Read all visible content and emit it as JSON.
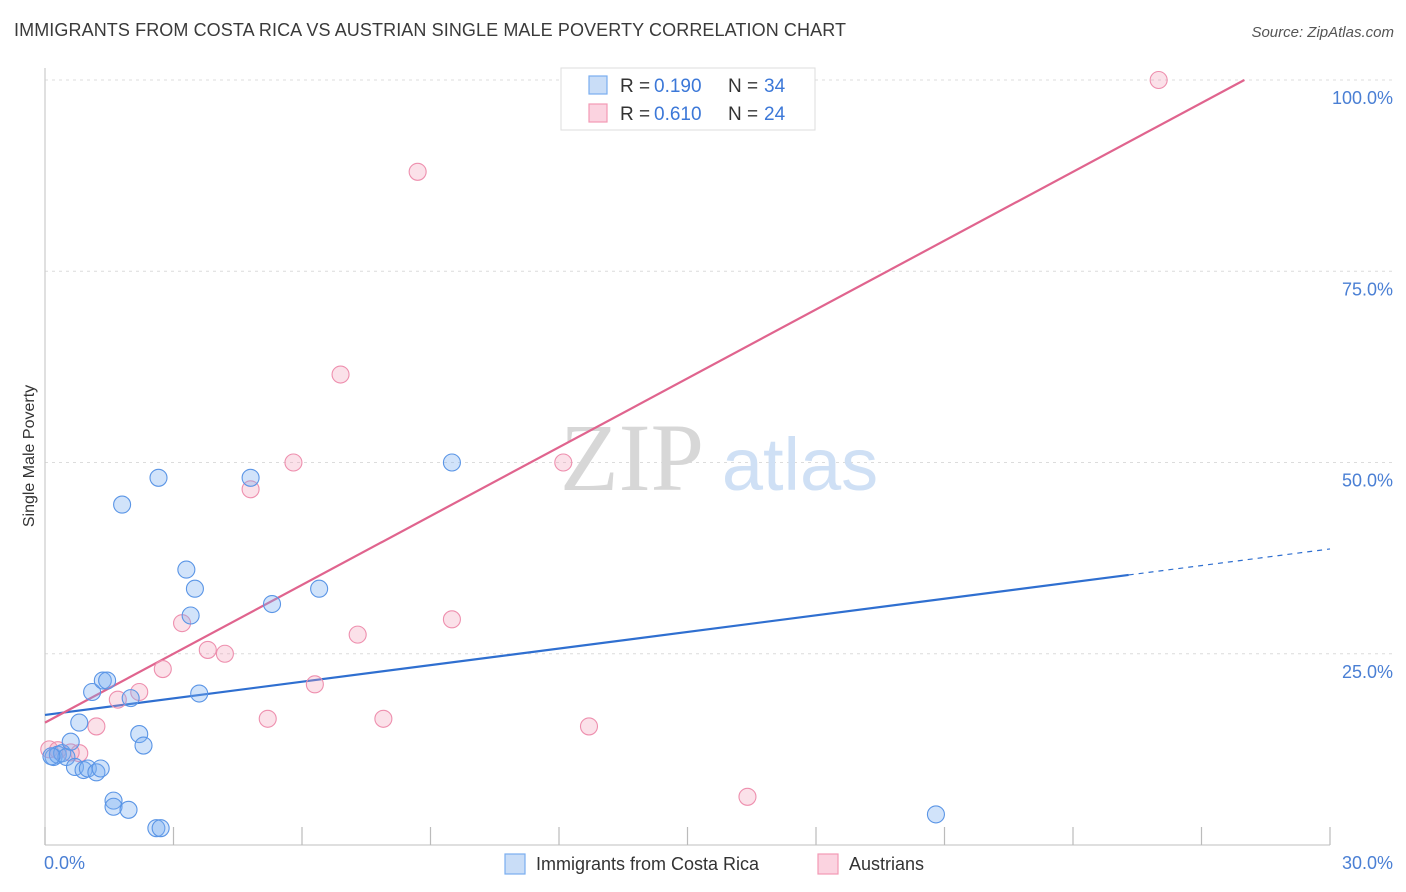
{
  "header": {
    "title": "IMMIGRANTS FROM COSTA RICA VS AUSTRIAN SINGLE MALE POVERTY CORRELATION CHART",
    "source": "Source: ZipAtlas.com"
  },
  "watermark": {
    "zip": "ZIP",
    "atlas": "atlas"
  },
  "legend_box": {
    "rows": [
      {
        "r_label": "R = ",
        "r_value": "0.190",
        "n_label": "N = ",
        "n_value": "34",
        "color": "#7aaef0"
      },
      {
        "r_label": "R = ",
        "r_value": "0.610",
        "n_label": "N = ",
        "n_value": "24",
        "color": "#f29ab5"
      }
    ]
  },
  "chart_data": {
    "type": "scatter",
    "title": "IMMIGRANTS FROM COSTA RICA VS AUSTRIAN SINGLE MALE POVERTY CORRELATION CHART",
    "xlabel": "",
    "ylabel": "Single Male Poverty",
    "xlim": [
      0,
      30
    ],
    "ylim": [
      0,
      100
    ],
    "x_tick_labels": [
      "0.0%",
      "30.0%"
    ],
    "y_tick_labels": [
      "100.0%",
      "75.0%",
      "50.0%",
      "25.0%"
    ],
    "y_tick_values": [
      100,
      75,
      50,
      25
    ],
    "grid": true,
    "legend_position": "bottom",
    "colors": {
      "blue": "#7aaef0",
      "blue_line": "#2f6fd0",
      "pink": "#f29ab5",
      "pink_line": "#e0648e",
      "axis_text": "#4a7fd4"
    },
    "series": [
      {
        "name": "Immigrants from Costa Rica",
        "color": "#7aaef0",
        "points": [
          [
            0.2,
            11.5
          ],
          [
            0.3,
            11.8
          ],
          [
            0.4,
            12.0
          ],
          [
            0.5,
            11.5
          ],
          [
            0.6,
            13.5
          ],
          [
            0.7,
            10.2
          ],
          [
            0.8,
            16.0
          ],
          [
            0.9,
            9.8
          ],
          [
            1.0,
            10.0
          ],
          [
            1.1,
            20.0
          ],
          [
            1.2,
            9.5
          ],
          [
            1.3,
            10.0
          ],
          [
            1.35,
            21.5
          ],
          [
            1.45,
            21.5
          ],
          [
            1.6,
            5.8
          ],
          [
            1.6,
            5.0
          ],
          [
            1.8,
            44.5
          ],
          [
            1.95,
            4.6
          ],
          [
            2.0,
            19.2
          ],
          [
            2.2,
            14.5
          ],
          [
            2.3,
            13.0
          ],
          [
            2.6,
            2.2
          ],
          [
            2.7,
            2.2
          ],
          [
            2.65,
            48.0
          ],
          [
            3.3,
            36.0
          ],
          [
            3.4,
            30.0
          ],
          [
            3.5,
            33.5
          ],
          [
            3.6,
            19.8
          ],
          [
            4.8,
            48.0
          ],
          [
            5.3,
            31.5
          ],
          [
            6.4,
            33.5
          ],
          [
            9.5,
            50.0
          ],
          [
            20.8,
            4.0
          ],
          [
            0.15,
            11.6
          ]
        ],
        "trend": {
          "x0": 0,
          "y0": 17.0,
          "x1": 25.3,
          "y1": 35.3,
          "dashed_to_x": 30,
          "dashed_to_y": 38.7
        }
      },
      {
        "name": "Austrians",
        "color": "#f29ab5",
        "points": [
          [
            0.1,
            12.5
          ],
          [
            0.8,
            12.0
          ],
          [
            1.2,
            15.5
          ],
          [
            1.7,
            19.0
          ],
          [
            2.2,
            20.0
          ],
          [
            2.75,
            23.0
          ],
          [
            3.2,
            29.0
          ],
          [
            3.8,
            25.5
          ],
          [
            4.2,
            25.0
          ],
          [
            4.8,
            46.5
          ],
          [
            5.2,
            16.5
          ],
          [
            5.8,
            50.0
          ],
          [
            6.3,
            21.0
          ],
          [
            6.9,
            61.5
          ],
          [
            7.3,
            27.5
          ],
          [
            7.9,
            16.5
          ],
          [
            8.7,
            88.0
          ],
          [
            9.5,
            29.5
          ],
          [
            12.1,
            50.0
          ],
          [
            12.7,
            15.5
          ],
          [
            16.4,
            6.3
          ],
          [
            26.0,
            100.0
          ],
          [
            0.6,
            12.1
          ],
          [
            0.3,
            12.4
          ]
        ],
        "trend": {
          "x0": 0,
          "y0": 16.0,
          "x1": 28.0,
          "y1": 100.0
        }
      }
    ]
  }
}
